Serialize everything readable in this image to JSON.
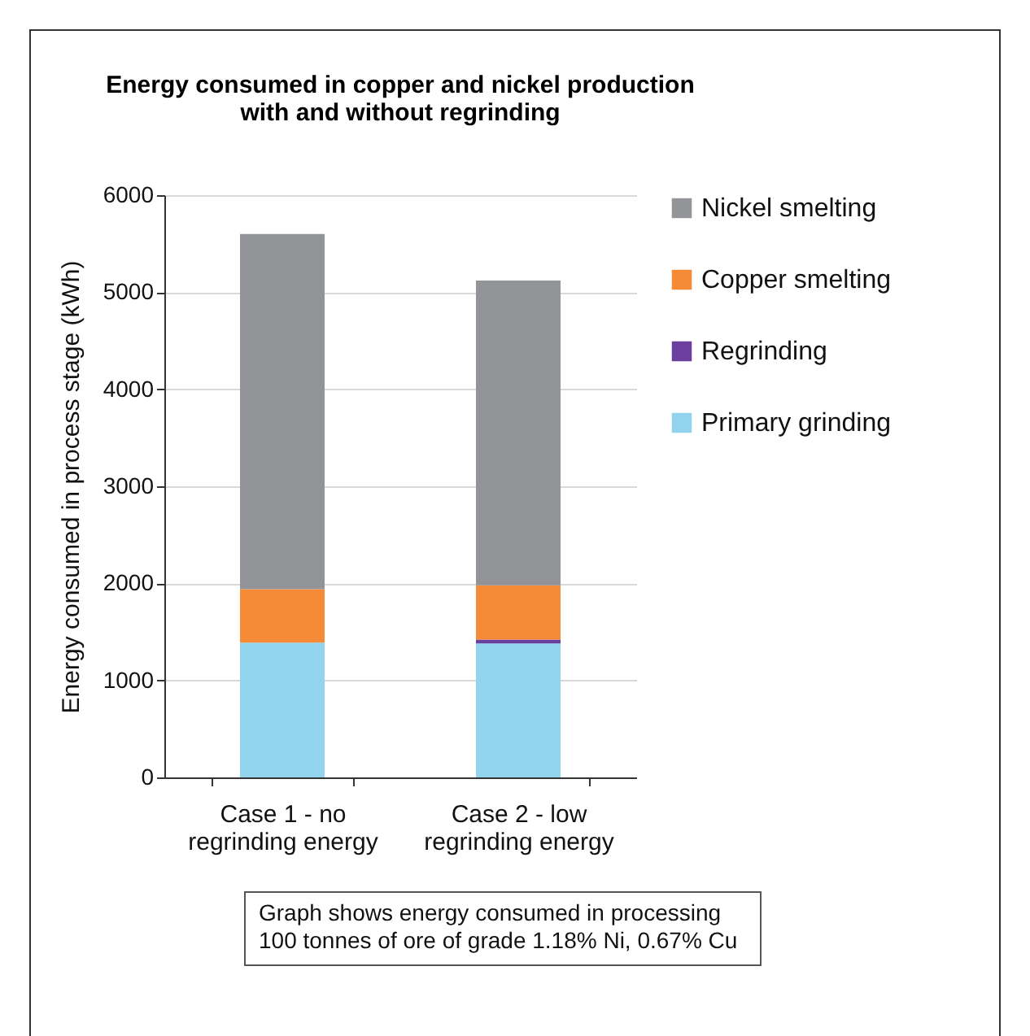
{
  "chart_data": {
    "type": "bar",
    "title": "Energy consumed in copper and nickel production\nwith and without regrinding",
    "ylabel": "Energy consumed in process stage (kWh)",
    "categories": [
      "Case 1 - no regrinding energy",
      "Case 2 - low regrinding energy"
    ],
    "stacked": true,
    "ylim": [
      0,
      6000
    ],
    "yticks": [
      0,
      1000,
      2000,
      3000,
      4000,
      5000,
      6000
    ],
    "grid": "y",
    "legend": "right",
    "series": [
      {
        "name": "Primary grinding",
        "color": "#92d4ee",
        "values": [
          1390,
          1380
        ]
      },
      {
        "name": "Regrinding",
        "color": "#6a3fa0",
        "values": [
          0,
          40
        ]
      },
      {
        "name": "Copper smelting",
        "color": "#f58b36",
        "values": [
          550,
          560
        ]
      },
      {
        "name": "Nickel smelting",
        "color": "#929497",
        "values": [
          3660,
          3140
        ]
      }
    ],
    "annotations": [
      "Graph shows energy consumed in processing 100 tonnes of ore of grade 1.18% Ni, 0.67% Cu"
    ]
  }
}
